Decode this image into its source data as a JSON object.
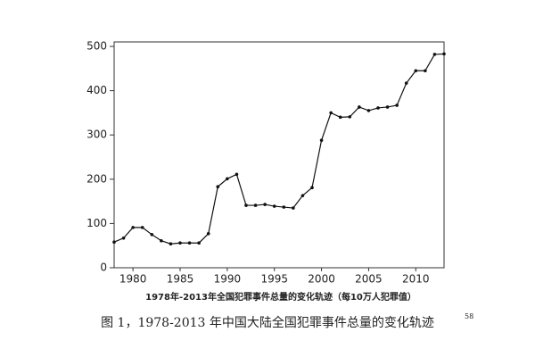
{
  "chart_data": {
    "type": "line",
    "caption": "1978年-2013年全国犯罪事件总量的变化轨迹（每10万人犯罪值）",
    "figure_caption": "图 1，1978-2013 年中国大陆全国犯罪事件总量的变化轨迹",
    "figure_footnote": "58",
    "x": [
      1978,
      1979,
      1980,
      1981,
      1982,
      1983,
      1984,
      1985,
      1986,
      1987,
      1988,
      1989,
      1990,
      1991,
      1992,
      1993,
      1994,
      1995,
      1996,
      1997,
      1998,
      1999,
      2000,
      2001,
      2002,
      2003,
      2004,
      2005,
      2006,
      2007,
      2008,
      2009,
      2010,
      2011,
      2012,
      2013
    ],
    "series": [
      {
        "color": "#111111",
        "values": [
          58,
          67,
          91,
          91,
          75,
          61,
          54,
          56,
          56,
          56,
          77,
          183,
          201,
          211,
          141,
          141,
          143,
          139,
          137,
          135,
          163,
          181,
          288,
          350,
          340,
          341,
          363,
          355,
          361,
          363,
          367,
          417,
          445,
          445,
          482,
          483
        ]
      }
    ],
    "xlim": [
      1978,
      2013
    ],
    "xticks": [
      1980,
      1985,
      1990,
      1995,
      2000,
      2005,
      2010
    ],
    "ylim": [
      0,
      500
    ],
    "yticks": [
      0,
      100,
      200,
      300,
      400,
      500
    ]
  }
}
